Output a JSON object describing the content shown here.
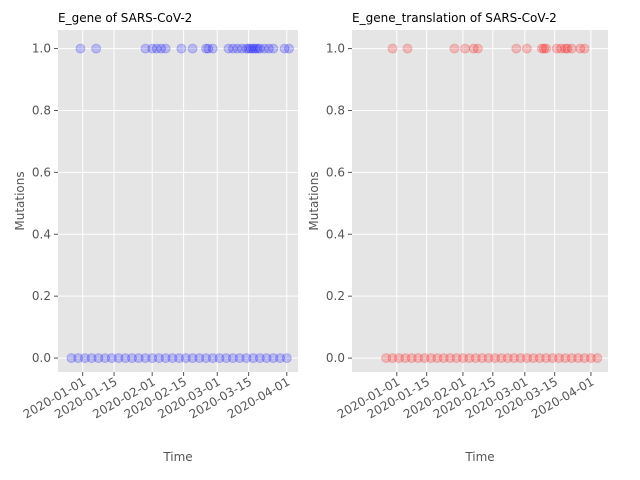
{
  "chart_data": [
    {
      "type": "scatter",
      "title": "E_gene of SARS-CoV-2",
      "x_label": "Time",
      "y_label": "Mutations",
      "color": "#0000ff",
      "alpha": 0.2,
      "grid": true,
      "x": [
        "2019-12-31",
        "2020-01-07",
        "2020-01-29",
        "2020-02-01",
        "2020-02-03",
        "2020-02-05",
        "2020-02-07",
        "2020-02-14",
        "2020-02-19",
        "2020-02-25",
        "2020-02-26",
        "2020-02-28",
        "2020-03-06",
        "2020-03-08",
        "2020-03-10",
        "2020-03-12",
        "2020-03-14",
        "2020-03-15",
        "2020-03-16",
        "2020-03-17",
        "2020-03-18",
        "2020-03-19",
        "2020-03-20",
        "2020-03-22",
        "2020-03-24",
        "2020-03-26",
        "2020-03-31",
        "2020-04-02",
        "2019-12-27",
        "2019-12-30",
        "2020-01-02",
        "2020-01-05",
        "2020-01-08",
        "2020-01-11",
        "2020-01-14",
        "2020-01-17",
        "2020-01-20",
        "2020-01-23",
        "2020-01-26",
        "2020-01-29",
        "2020-02-01",
        "2020-02-04",
        "2020-02-07",
        "2020-02-10",
        "2020-02-13",
        "2020-02-16",
        "2020-02-19",
        "2020-02-22",
        "2020-02-25",
        "2020-02-28",
        "2020-03-02",
        "2020-03-05",
        "2020-03-08",
        "2020-03-11",
        "2020-03-14",
        "2020-03-17",
        "2020-03-20",
        "2020-03-23",
        "2020-03-26",
        "2020-03-29",
        "2020-04-01"
      ],
      "values": [
        1,
        1,
        1,
        1,
        1,
        1,
        1,
        1,
        1,
        1,
        1,
        1,
        1,
        1,
        1,
        1,
        1,
        1,
        1,
        1,
        1,
        1,
        1,
        1,
        1,
        1,
        1,
        1,
        0,
        0,
        0,
        0,
        0,
        0,
        0,
        0,
        0,
        0,
        0,
        0,
        0,
        0,
        0,
        0,
        0,
        0,
        0,
        0,
        0,
        0,
        0,
        0,
        0,
        0,
        0,
        0,
        0,
        0,
        0,
        0,
        0
      ],
      "xlim": [
        "2019-12-21",
        "2020-04-06"
      ],
      "ylim": [
        -0.045,
        1.06
      ],
      "xticks": [
        "2020-01-01",
        "2020-01-15",
        "2020-02-01",
        "2020-02-15",
        "2020-03-01",
        "2020-03-15",
        "2020-04-01"
      ],
      "yticks": [
        {
          "value": 0,
          "label": "0.0"
        },
        0.2,
        0.4,
        0.6,
        0.8,
        {
          "value": 1,
          "label": "1.0"
        }
      ]
    },
    {
      "type": "scatter",
      "title": "E_gene_translation of SARS-CoV-2",
      "x_label": "Time",
      "y_label": "Mutations",
      "color": "#ff0000",
      "alpha": 0.2,
      "grid": true,
      "x": [
        "2019-12-30",
        "2020-01-06",
        "2020-01-28",
        "2020-02-02",
        "2020-02-06",
        "2020-02-08",
        "2020-02-26",
        "2020-03-02",
        "2020-03-09",
        "2020-03-10",
        "2020-03-11",
        "2020-03-16",
        "2020-03-18",
        "2020-03-20",
        "2020-03-21",
        "2020-03-23",
        "2020-03-27",
        "2020-03-29",
        "2019-12-27",
        "2019-12-30",
        "2020-01-02",
        "2020-01-05",
        "2020-01-08",
        "2020-01-11",
        "2020-01-14",
        "2020-01-17",
        "2020-01-20",
        "2020-01-23",
        "2020-01-26",
        "2020-01-29",
        "2020-02-01",
        "2020-02-04",
        "2020-02-07",
        "2020-02-10",
        "2020-02-13",
        "2020-02-16",
        "2020-02-19",
        "2020-02-22",
        "2020-02-25",
        "2020-02-28",
        "2020-03-02",
        "2020-03-05",
        "2020-03-08",
        "2020-03-11",
        "2020-03-14",
        "2020-03-17",
        "2020-03-20",
        "2020-03-23",
        "2020-03-26",
        "2020-03-29",
        "2020-04-01",
        "2020-04-04"
      ],
      "values": [
        1,
        1,
        1,
        1,
        1,
        1,
        1,
        1,
        1,
        1,
        1,
        1,
        1,
        1,
        1,
        1,
        1,
        1,
        0,
        0,
        0,
        0,
        0,
        0,
        0,
        0,
        0,
        0,
        0,
        0,
        0,
        0,
        0,
        0,
        0,
        0,
        0,
        0,
        0,
        0,
        0,
        0,
        0,
        0,
        0,
        0,
        0,
        0,
        0,
        0,
        0,
        0
      ],
      "xlim": [
        "2019-12-11",
        "2020-04-09"
      ],
      "ylim": [
        -0.045,
        1.06
      ],
      "xticks": [
        "2020-01-01",
        "2020-01-15",
        "2020-02-01",
        "2020-02-15",
        "2020-03-01",
        "2020-03-15",
        "2020-04-01"
      ],
      "yticks": [
        {
          "value": 0,
          "label": "0.0"
        },
        0.2,
        0.4,
        0.6,
        0.8,
        {
          "value": 1,
          "label": "1.0"
        }
      ]
    }
  ]
}
